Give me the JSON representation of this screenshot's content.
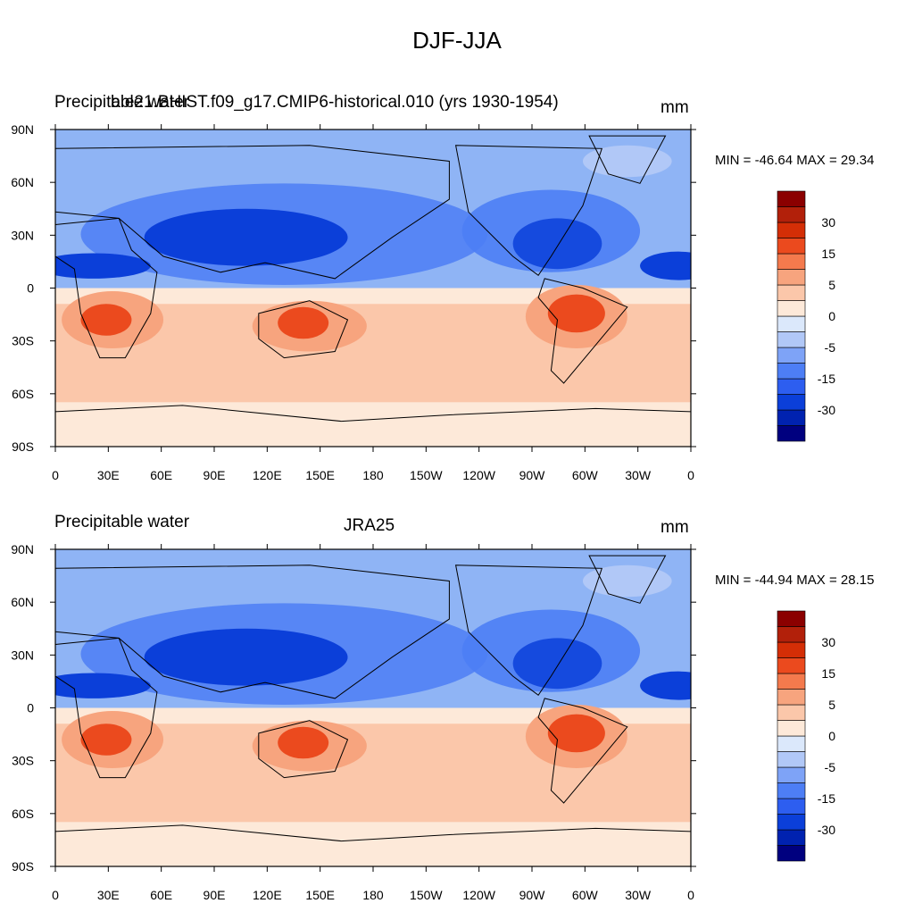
{
  "main_title": "DJF-JJA",
  "panels": [
    {
      "left_title": "Precipitable water",
      "center_title": "b.e21.BHIST.f09_g17.CMIP6-historical.010 (yrs 1930-1954)",
      "units": "mm",
      "stats": "MIN = -46.64 MAX =  29.34"
    },
    {
      "left_title": "Precipitable water",
      "center_title": "JRA25",
      "units": "mm",
      "stats": "MIN = -44.94 MAX =  28.15"
    }
  ],
  "axes": {
    "lon_ticks": [
      "0",
      "30E",
      "60E",
      "90E",
      "120E",
      "150E",
      "180",
      "150W",
      "120W",
      "90W",
      "60W",
      "30W",
      "0"
    ],
    "lat_ticks": [
      "90N",
      "60N",
      "30N",
      "0",
      "30S",
      "60S",
      "90S"
    ]
  },
  "colorbar": {
    "colors": [
      "#00007f",
      "#0022b0",
      "#0b3fd9",
      "#2d5ef0",
      "#4d7ef5",
      "#7ea3f7",
      "#b1c8f7",
      "#dbe8fb",
      "#fde9d9",
      "#fbc7aa",
      "#f7a47e",
      "#f47a4d",
      "#eb4a1e",
      "#d42e06",
      "#b2200a",
      "#8b0000"
    ],
    "labels": [
      "30",
      "15",
      "5",
      "0",
      "-5",
      "-15",
      "-30"
    ]
  },
  "palette": {
    "ocean_blue": "#8fb4f5",
    "deep_blue": "#0b3fd9",
    "mid_blue": "#4d7ef5",
    "light_orange": "#fbc7aa",
    "orange": "#f7a47e",
    "dark_orange": "#eb4a1e",
    "pale": "#fde9d9"
  }
}
